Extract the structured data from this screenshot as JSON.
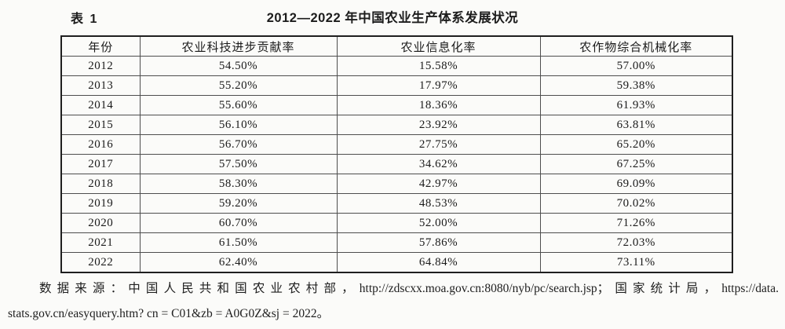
{
  "header": {
    "caption_label": "表 1",
    "title": "2012—2022 年中国农业生产体系发展状况"
  },
  "table": {
    "columns": [
      "年份",
      "农业科技进步贡献率",
      "农业信息化率",
      "农作物综合机械化率"
    ],
    "rows": [
      {
        "year": "2012",
        "values": [
          "54.50%",
          "15.58%",
          "57.00%"
        ]
      },
      {
        "year": "2013",
        "values": [
          "55.20%",
          "17.97%",
          "59.38%"
        ]
      },
      {
        "year": "2014",
        "values": [
          "55.60%",
          "18.36%",
          "61.93%"
        ]
      },
      {
        "year": "2015",
        "values": [
          "56.10%",
          "23.92%",
          "63.81%"
        ]
      },
      {
        "year": "2016",
        "values": [
          "56.70%",
          "27.75%",
          "65.20%"
        ]
      },
      {
        "year": "2017",
        "values": [
          "57.50%",
          "34.62%",
          "67.25%"
        ]
      },
      {
        "year": "2018",
        "values": [
          "58.30%",
          "42.97%",
          "69.09%"
        ]
      },
      {
        "year": "2019",
        "values": [
          "59.20%",
          "48.53%",
          "70.02%"
        ]
      },
      {
        "year": "2020",
        "values": [
          "60.70%",
          "52.00%",
          "71.26%"
        ]
      },
      {
        "year": "2021",
        "values": [
          "61.50%",
          "57.86%",
          "72.03%"
        ]
      },
      {
        "year": "2022",
        "values": [
          "62.40%",
          "64.84%",
          "73.11%"
        ]
      }
    ]
  },
  "footnote": {
    "line1": "数据来源：中国人民共和国农业农村部，http://zdscxx.moa.gov.cn:8080/nyb/pc/search.jsp；国家统计局，https://data.",
    "line2": "stats.gov.cn/easyquery.htm? cn = C01&zb = A0G0Z&sj = 2022。"
  },
  "colors": {
    "background": "#fbfbf9",
    "text": "#1c1c1c",
    "border_outer": "#1f1f1f",
    "border_inner": "#4e4e4e"
  },
  "chart_data": {
    "type": "table",
    "title": "2012—2022 年中国农业生产体系发展状况",
    "categories": [
      "2012",
      "2013",
      "2014",
      "2015",
      "2016",
      "2017",
      "2018",
      "2019",
      "2020",
      "2021",
      "2022"
    ],
    "series": [
      {
        "name": "农业科技进步贡献率",
        "values": [
          54.5,
          55.2,
          55.6,
          56.1,
          56.7,
          57.5,
          58.3,
          59.2,
          60.7,
          61.5,
          62.4
        ]
      },
      {
        "name": "农业信息化率",
        "values": [
          15.58,
          17.97,
          18.36,
          23.92,
          27.75,
          34.62,
          42.97,
          48.53,
          52.0,
          57.86,
          64.84
        ]
      },
      {
        "name": "农作物综合机械化率",
        "values": [
          57.0,
          59.38,
          61.93,
          63.81,
          65.2,
          67.25,
          69.09,
          70.02,
          71.26,
          72.03,
          73.11
        ]
      }
    ],
    "unit": "%",
    "source_note": "数据来源：中国人民共和国农业农村部，http://zdscxx.moa.gov.cn:8080/nyb/pc/search.jsp；国家统计局，https://data.stats.gov.cn/easyquery.htm? cn = C01&zb = A0G0Z&sj = 2022。"
  }
}
